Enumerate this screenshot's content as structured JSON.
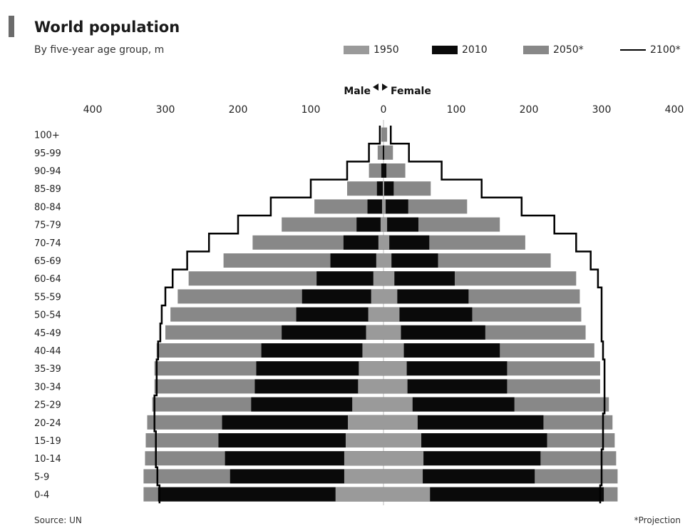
{
  "header": {
    "title": "World population",
    "subtitle": "By five-year age group, m"
  },
  "legend": [
    {
      "label": "1950",
      "color": "#9a9a9a",
      "kind": "bar"
    },
    {
      "label": "2010",
      "color": "#0a0a0a",
      "kind": "bar"
    },
    {
      "label": "2050*",
      "color": "#888888",
      "kind": "bar"
    },
    {
      "label": "2100*",
      "color": "#000000",
      "kind": "line"
    }
  ],
  "axis_header": {
    "male": "Male",
    "female": "Female"
  },
  "footer": {
    "source": "Source: UN",
    "note": "*Projection"
  },
  "chart_data": {
    "type": "bar",
    "orientation": "horizontal-pyramid",
    "xlim": [
      -400,
      400
    ],
    "xticks": [
      -400,
      -300,
      -200,
      -100,
      0,
      100,
      200,
      300,
      400
    ],
    "xtick_labels": [
      "400",
      "300",
      "200",
      "100",
      "0",
      "100",
      "200",
      "300",
      "400"
    ],
    "categories": [
      "100+",
      "95-99",
      "90-94",
      "85-89",
      "80-84",
      "75-79",
      "70-74",
      "65-69",
      "60-64",
      "55-59",
      "50-54",
      "45-49",
      "40-44",
      "35-39",
      "30-34",
      "25-29",
      "20-24",
      "15-19",
      "10-14",
      "5-9",
      "0-4"
    ],
    "series": [
      {
        "name": "1950",
        "male": [
          0,
          0,
          0,
          1,
          2,
          4,
          7,
          10,
          14,
          17,
          21,
          24,
          29,
          34,
          35,
          43,
          49,
          52,
          54,
          54,
          66
        ],
        "female": [
          0,
          0,
          0,
          1,
          3,
          5,
          8,
          11,
          15,
          19,
          22,
          24,
          28,
          32,
          33,
          40,
          47,
          52,
          55,
          54,
          64
        ]
      },
      {
        "name": "2010",
        "male": [
          0,
          1,
          3,
          9,
          22,
          37,
          55,
          73,
          92,
          112,
          120,
          140,
          168,
          175,
          177,
          182,
          222,
          227,
          218,
          211,
          310
        ],
        "female": [
          0,
          1,
          4,
          14,
          34,
          48,
          63,
          75,
          98,
          117,
          122,
          140,
          160,
          170,
          170,
          180,
          220,
          225,
          216,
          208,
          303
        ]
      },
      {
        "name": "2050*",
        "male": [
          3,
          8,
          20,
          50,
          95,
          140,
          180,
          220,
          268,
          283,
          293,
          300,
          312,
          315,
          315,
          318,
          325,
          327,
          328,
          330,
          330
        ],
        "female": [
          5,
          13,
          30,
          65,
          115,
          160,
          195,
          230,
          265,
          270,
          272,
          278,
          290,
          298,
          298,
          310,
          315,
          318,
          320,
          322,
          322
        ]
      }
    ],
    "line_series": {
      "name": "2100*",
      "male": [
        5,
        20,
        50,
        100,
        155,
        200,
        240,
        270,
        290,
        300,
        305,
        307,
        310,
        312,
        312,
        315,
        315,
        313,
        313,
        311,
        308
      ],
      "female": [
        10,
        35,
        80,
        135,
        190,
        235,
        265,
        285,
        295,
        300,
        300,
        300,
        302,
        304,
        304,
        304,
        302,
        302,
        300,
        300,
        298
      ]
    }
  }
}
